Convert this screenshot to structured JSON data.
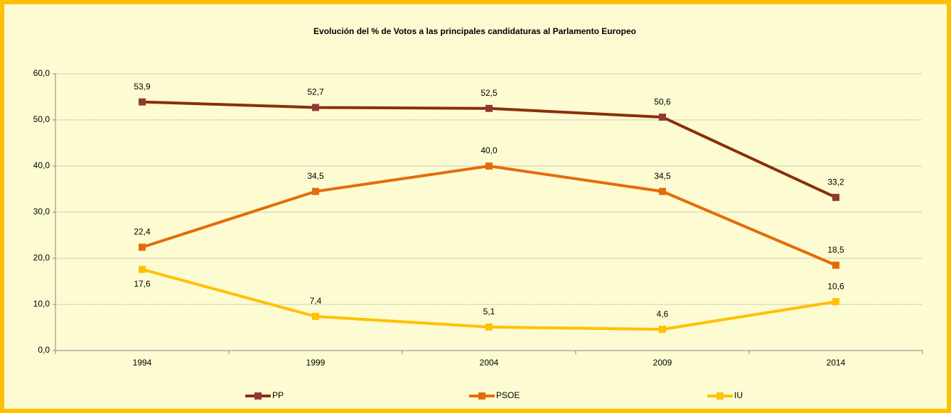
{
  "chart_data": {
    "type": "line",
    "title": "Evolución del % de Votos a las principales candidaturas al Parlamento Europeo",
    "categories": [
      "1994",
      "1999",
      "2004",
      "2009",
      "2014"
    ],
    "series": [
      {
        "name": "PP",
        "color": "#8b2e0b",
        "marker_color": "#953735",
        "values": [
          53.9,
          52.7,
          52.5,
          50.6,
          33.2
        ],
        "value_labels": [
          "53,9",
          "52,7",
          "52,5",
          "50,6",
          "33,2"
        ]
      },
      {
        "name": "PSOE",
        "color": "#e36c09",
        "marker_color": "#e36c09",
        "values": [
          22.4,
          34.5,
          40.0,
          34.5,
          18.5
        ],
        "value_labels": [
          "22,4",
          "34,5",
          "40,0",
          "34,5",
          "18,5"
        ]
      },
      {
        "name": "IU",
        "color": "#ffc000",
        "marker_color": "#ffc000",
        "values": [
          17.6,
          7.4,
          5.1,
          4.6,
          10.6
        ],
        "value_labels": [
          "17,6",
          "7,4",
          "5,1",
          "4,6",
          "10,6"
        ]
      }
    ],
    "ylim": [
      0,
      60
    ],
    "yticks": [
      {
        "value": 0,
        "label": "0,0"
      },
      {
        "value": 10,
        "label": "10,0"
      },
      {
        "value": 20,
        "label": "20,0"
      },
      {
        "value": 30,
        "label": "30,0"
      },
      {
        "value": 40,
        "label": "40,0"
      },
      {
        "value": 50,
        "label": "50,0"
      },
      {
        "value": 60,
        "label": "60,0"
      }
    ],
    "grid": true,
    "legend": "bottom"
  }
}
